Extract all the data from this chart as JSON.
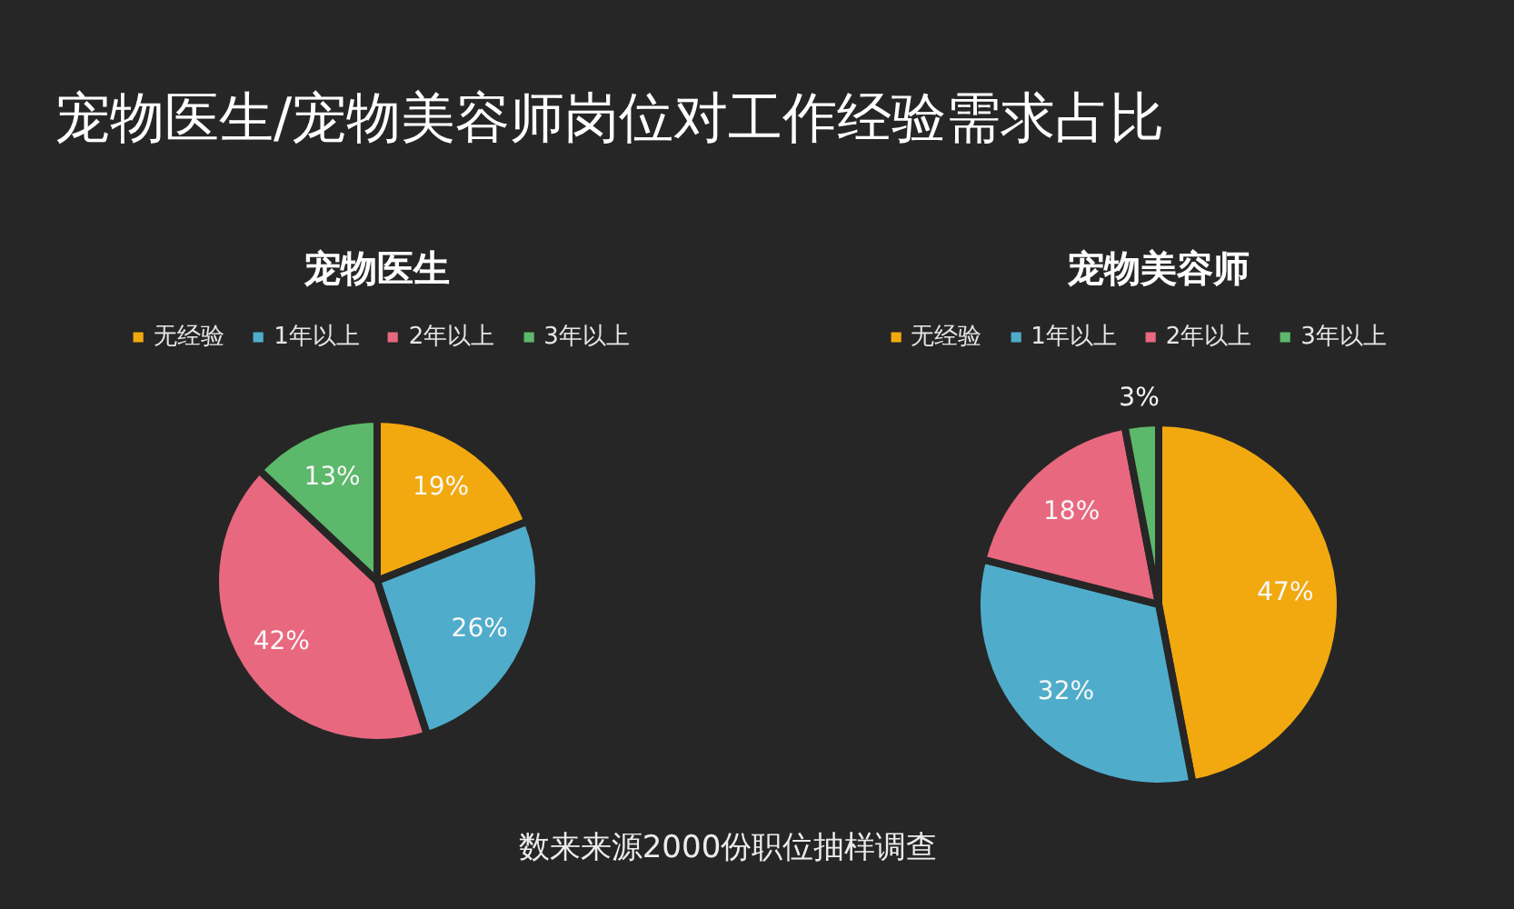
{
  "chart_data": [
    {
      "type": "other",
      "title": "宠物医生/宠物美容师岗位对工作经验需求占比",
      "annotations": [
        "数来来源2000份职位抽样调查"
      ]
    },
    {
      "type": "pie",
      "title": "宠物医生",
      "categories": [
        "无经验",
        "1年以上",
        "2年以上",
        "3年以上"
      ],
      "values": [
        19,
        26,
        42,
        13
      ],
      "colors": [
        "#f2a90f",
        "#4fadcb",
        "#e8687f",
        "#5cb86a"
      ],
      "value_labels": [
        "19%",
        "26%",
        "42%",
        "13%"
      ],
      "legend": "top"
    },
    {
      "type": "pie",
      "title": "宠物美容师",
      "categories": [
        "无经验",
        "1年以上",
        "2年以上",
        "3年以上"
      ],
      "values": [
        47,
        32,
        18,
        3
      ],
      "colors": [
        "#f2a90f",
        "#4fadcb",
        "#e8687f",
        "#5cb86a"
      ],
      "value_labels": [
        "47%",
        "32%",
        "18%",
        "3%"
      ],
      "legend": "top"
    }
  ]
}
